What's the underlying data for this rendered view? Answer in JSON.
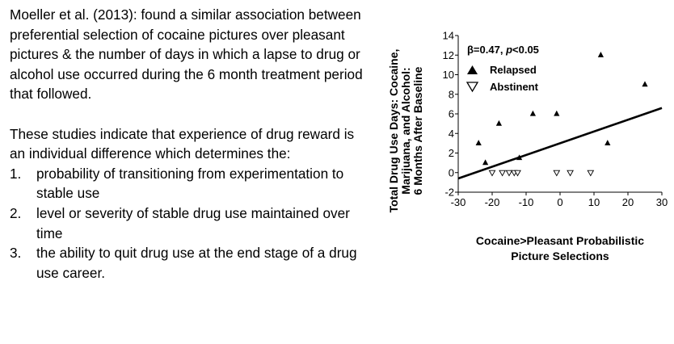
{
  "text": {
    "intro": "Moeller et al. (2013): found a similar association between preferential selection of cocaine pictures over pleasant pictures & the number of days in which a lapse to drug or alcohol use occurred during the 6 month treatment period that followed.",
    "conclusion": "These studies indicate that experience of drug reward is an individual difference which determines the:",
    "list": [
      {
        "num": "1.",
        "text": "probability of transitioning from experimentation to stable use"
      },
      {
        "num": "2.",
        "text": "level or severity of stable drug use maintained over time"
      },
      {
        "num": "3.",
        "text": "the ability to quit drug use at the end stage of a drug use career."
      }
    ]
  },
  "chart_data": {
    "type": "scatter",
    "ylabel_lines": [
      "Total Drug Use Days: Cocaine,",
      "Marijuana, and Alcohol:",
      "6 Months After Baseline"
    ],
    "xlabel_lines": [
      "Cocaine>Pleasant Probabilistic",
      "Picture Selections"
    ],
    "annotation": {
      "prefix": "β=0.47, ",
      "p_label": "p",
      "suffix": "<0.05"
    },
    "xlim": [
      -30,
      30
    ],
    "ylim": [
      -2,
      14
    ],
    "x_ticks": [
      -30,
      -20,
      -10,
      0,
      10,
      20,
      30
    ],
    "x_tick_labels": [
      "-30",
      "-20",
      "-10",
      "0",
      "10",
      "20",
      "30"
    ],
    "y_ticks": [
      -2,
      0,
      2,
      4,
      6,
      8,
      10,
      12,
      14
    ],
    "y_tick_labels": [
      "-2",
      "0",
      "2",
      "4",
      "6",
      "8",
      "10",
      "12",
      "14"
    ],
    "grid": false,
    "legend_position": "top-left",
    "series": [
      {
        "name": "Relapsed",
        "marker": "triangle-up-filled",
        "points": [
          [
            -24,
            3
          ],
          [
            -22,
            1
          ],
          [
            -18,
            5
          ],
          [
            -12,
            1.5
          ],
          [
            -8,
            6
          ],
          [
            -1,
            6
          ],
          [
            12,
            12
          ],
          [
            14,
            3
          ],
          [
            25,
            9
          ]
        ]
      },
      {
        "name": "Abstinent",
        "marker": "triangle-down-open",
        "points": [
          [
            -20,
            0
          ],
          [
            -17,
            0
          ],
          [
            -15,
            0
          ],
          [
            -13.5,
            0
          ],
          [
            -12.5,
            0
          ],
          [
            -1,
            0
          ],
          [
            3,
            0
          ],
          [
            9,
            0
          ]
        ]
      }
    ],
    "trendline": {
      "x": [
        -30,
        30
      ],
      "y": [
        -0.6,
        6.6
      ]
    }
  }
}
